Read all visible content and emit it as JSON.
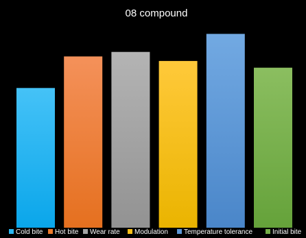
{
  "chart_data": {
    "type": "bar",
    "title": "08 compound",
    "xlabel": "",
    "ylabel": "",
    "categories": [
      "Cold bite",
      "Hot bite",
      "Wear rate",
      "Modulation",
      "Temperature tolerance",
      "Initial bite"
    ],
    "values": [
      62,
      76,
      78,
      74,
      86,
      71
    ],
    "ylim": [
      0,
      91
    ],
    "grid": false,
    "legend": "bottom",
    "colors": [
      [
        "#45c2f7",
        "#0aa6ea"
      ],
      [
        "#f4915a",
        "#e5701f"
      ],
      [
        "#b4b4b4",
        "#929292"
      ],
      [
        "#ffc93a",
        "#eab400"
      ],
      [
        "#72a9e2",
        "#4a86c9"
      ],
      [
        "#8bbe60",
        "#65a23a"
      ]
    ],
    "legend_colors": [
      "#2ab7f1",
      "#ee7b2c",
      "#a3a3a3",
      "#fbbf18",
      "#5c97d6",
      "#75ae47"
    ]
  }
}
